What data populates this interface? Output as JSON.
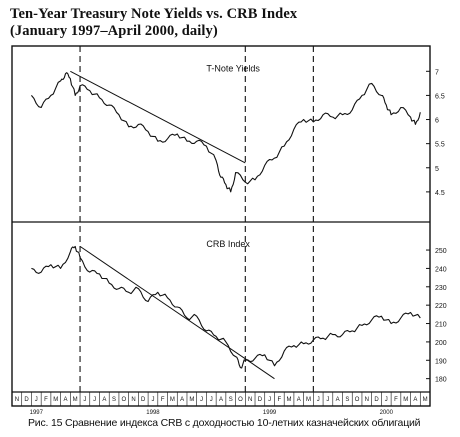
{
  "title_line1": "Ten-Year Treasury Note Yields vs. CRB Index",
  "title_line2": "(January 1997–April 2000, daily)",
  "caption": "Рис. 15 Сравнение индекса CRB с доходностью 10-летних казначейских облигаций",
  "chart_data": [
    {
      "type": "line",
      "panel_label": "T-Note Yields",
      "ylim": [
        4.0,
        7.4
      ],
      "yticks": [
        4.5,
        5,
        5.5,
        6,
        6.5,
        7
      ],
      "ytick_labels": [
        "4.5",
        "5",
        "5.5",
        "6",
        "6.5",
        "7"
      ],
      "series": [
        {
          "x": [
            0,
            1,
            2,
            3,
            3.5,
            4,
            4.5,
            5,
            6,
            7,
            8,
            9,
            10,
            11,
            12,
            13,
            14,
            15,
            16,
            17,
            18,
            19,
            19.5,
            20,
            20.5,
            21,
            22,
            23,
            24,
            25,
            26,
            27,
            28,
            29,
            30,
            31,
            32,
            33,
            34,
            35,
            36,
            36.5,
            37,
            38,
            39,
            39.5,
            40
          ],
          "y": [
            6.5,
            6.25,
            6.5,
            6.8,
            6.95,
            6.85,
            6.5,
            6.7,
            6.6,
            6.45,
            6.3,
            6.1,
            5.85,
            5.9,
            5.75,
            5.55,
            5.6,
            5.7,
            5.55,
            5.55,
            5.45,
            5.15,
            4.8,
            4.65,
            4.5,
            4.9,
            4.7,
            4.75,
            5.05,
            5.2,
            5.45,
            5.8,
            6.0,
            5.95,
            6.1,
            6.05,
            6.1,
            6.2,
            6.5,
            6.75,
            6.5,
            6.3,
            6.1,
            6.25,
            6.05,
            5.9,
            6.15
          ]
        }
      ],
      "trendline": {
        "x": [
          4,
          22
        ],
        "y": [
          7.0,
          5.1
        ]
      }
    },
    {
      "type": "line",
      "panel_label": "CRB Index",
      "ylim": [
        176,
        262
      ],
      "yticks": [
        180,
        190,
        200,
        210,
        220,
        230,
        240,
        250
      ],
      "ytick_labels": [
        "180",
        "190",
        "200",
        "210",
        "220",
        "230",
        "240",
        "250"
      ],
      "series": [
        {
          "x": [
            0,
            1,
            2,
            3,
            4,
            4.5,
            5,
            6,
            7,
            8,
            9,
            10,
            11,
            12,
            13,
            14,
            15,
            16,
            17,
            18,
            19,
            20,
            21,
            21.5,
            22,
            23,
            24,
            25,
            26,
            27,
            28,
            29,
            30,
            31,
            32,
            33,
            34,
            35,
            36,
            37,
            38,
            39,
            40
          ],
          "y": [
            240,
            238,
            242,
            240,
            249,
            252,
            246,
            238,
            237,
            232,
            229,
            227,
            229,
            222,
            227,
            224,
            219,
            213,
            214,
            206,
            203,
            200,
            192,
            186,
            190,
            191,
            193,
            187,
            195,
            198,
            199,
            201,
            202,
            204,
            204,
            206,
            209,
            212,
            214,
            210,
            213,
            216,
            213
          ]
        }
      ],
      "trendline": {
        "x": [
          5,
          25
        ],
        "y": [
          252,
          180
        ]
      }
    }
  ],
  "x_axis": {
    "months": [
      "N",
      "D",
      "J",
      "F",
      "M",
      "A",
      "M",
      "J",
      "J",
      "A",
      "S",
      "O",
      "N",
      "D",
      "J",
      "F",
      "M",
      "A",
      "M",
      "J",
      "J",
      "A",
      "S",
      "O",
      "N",
      "D",
      "J",
      "F",
      "M",
      "A",
      "M",
      "J",
      "J",
      "A",
      "S",
      "O",
      "N",
      "D",
      "J",
      "F",
      "M",
      "A",
      "M"
    ],
    "years": [
      {
        "label": "1997",
        "index": 2
      },
      {
        "label": "1998",
        "index": 14
      },
      {
        "label": "1999",
        "index": 26
      },
      {
        "label": "2000",
        "index": 38
      }
    ],
    "vertical_markers": [
      5,
      22,
      29
    ]
  }
}
